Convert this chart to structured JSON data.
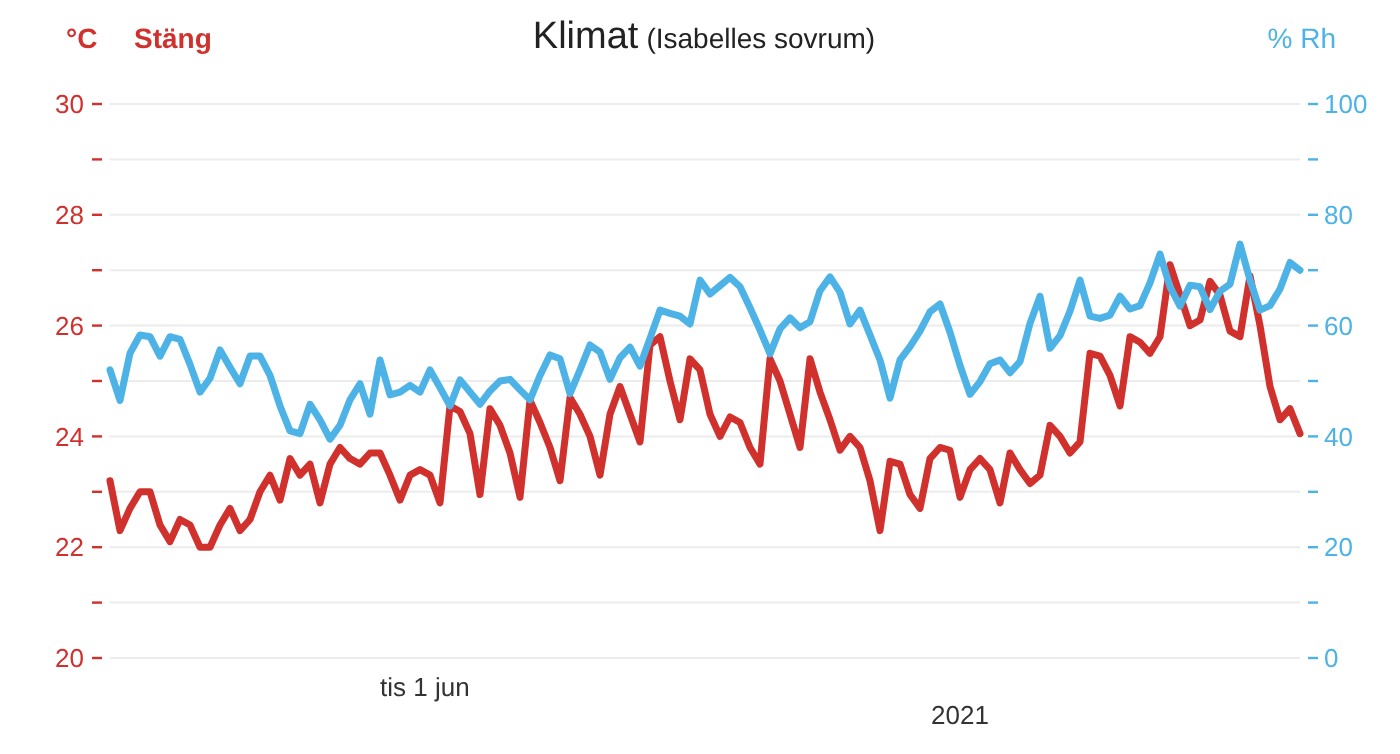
{
  "chart_data": {
    "type": "line",
    "title": "Klimat",
    "subtitle": "(Isabelles sovrum)",
    "ylabel": "°C",
    "y2label": "% Rh",
    "annotations": [
      "Stäng",
      "tis 1 jun",
      "2021"
    ],
    "categories": [
      null,
      null,
      null,
      null,
      null,
      null,
      null,
      null,
      null,
      null,
      null,
      null,
      null,
      null,
      null,
      null,
      null,
      null,
      null,
      null,
      null,
      null,
      null,
      null,
      null,
      null,
      null,
      null,
      null,
      null,
      null,
      null,
      null,
      null,
      null,
      null,
      null,
      null,
      null,
      null,
      null,
      null,
      null,
      null,
      null,
      null,
      null,
      null,
      null,
      null,
      null,
      null,
      null,
      null,
      null,
      null,
      null,
      null,
      null,
      null,
      null,
      null,
      null,
      null,
      null,
      null,
      null,
      null,
      null,
      null,
      null,
      null,
      null,
      null,
      null,
      null,
      null,
      null,
      null,
      null,
      null,
      null,
      null,
      null,
      null,
      null,
      null,
      null,
      null,
      null,
      null,
      null,
      null,
      null,
      null,
      null,
      null,
      null,
      null,
      null,
      null,
      null,
      null,
      null,
      null,
      null,
      null,
      null,
      null,
      null,
      null,
      null,
      null,
      null,
      null,
      null,
      null,
      null,
      null,
      null
    ],
    "ylim": [
      20,
      30
    ],
    "yticks": [
      20,
      {
        "value": 21,
        "label": null
      },
      22,
      {
        "value": 23,
        "label": null
      },
      24,
      {
        "value": 25,
        "label": null
      },
      26,
      {
        "value": 27,
        "label": null
      },
      28,
      {
        "value": 29,
        "label": null
      },
      30
    ],
    "y2lim": [
      0,
      100
    ],
    "y2ticks": [
      0,
      {
        "value": 10,
        "label": null
      },
      20,
      {
        "value": 30,
        "label": null
      },
      40,
      {
        "value": 50,
        "label": null
      },
      60,
      {
        "value": 70,
        "label": null
      },
      80,
      {
        "value": 90,
        "label": null
      },
      100
    ],
    "grid": "y",
    "marker": "none",
    "line_style": "solid",
    "series": [
      {
        "color": "#d0312d",
        "values": [
          23.2,
          22.3,
          22.7,
          23.0,
          23.0,
          22.4,
          22.1,
          22.5,
          22.4,
          22.0,
          22.0,
          22.4,
          22.7,
          22.3,
          22.5,
          23.0,
          23.3,
          22.85,
          23.6,
          23.3,
          23.5,
          22.8,
          23.5,
          23.8,
          23.6,
          23.5,
          23.7,
          23.7,
          23.3,
          22.85,
          23.3,
          23.4,
          23.3,
          22.8,
          24.55,
          24.45,
          24.05,
          22.95,
          24.5,
          24.2,
          23.7,
          22.9,
          24.65,
          24.25,
          23.8,
          23.2,
          24.7,
          24.4,
          24.0,
          23.3,
          24.4,
          24.9,
          24.4,
          23.9,
          25.65,
          25.8,
          25.0,
          24.3,
          25.4,
          25.2,
          24.4,
          24.0,
          24.35,
          24.25,
          23.8,
          23.5,
          25.4,
          25.0,
          24.4,
          23.8,
          25.4,
          24.8,
          24.3,
          23.75,
          24.0,
          23.8,
          23.2,
          22.3,
          23.55,
          23.5,
          22.95,
          22.7,
          23.6,
          23.8,
          23.75,
          22.9,
          23.4,
          23.6,
          23.4,
          22.8,
          23.7,
          23.4,
          23.15,
          23.3,
          24.2,
          24.0,
          23.7,
          23.9,
          25.5,
          25.45,
          25.1,
          24.55,
          25.8,
          25.7,
          25.5,
          25.8,
          27.1,
          26.55,
          26.0,
          26.1,
          26.8,
          26.55,
          25.9,
          25.8,
          26.9,
          26.0,
          24.9,
          24.3,
          24.5,
          24.05
        ]
      },
      {
        "color": "#4db3e6",
        "axis": "y2",
        "values": [
          52,
          46.5,
          55,
          58.3,
          58,
          54.5,
          58,
          57.5,
          53,
          48,
          50.5,
          55.6,
          52.5,
          49.5,
          54.5,
          54.5,
          51,
          45.5,
          41,
          40.5,
          45.8,
          43,
          39.5,
          42,
          46.6,
          49.5,
          44,
          53.8,
          47.5,
          48,
          49.2,
          48,
          52,
          48.8,
          45.5,
          50.2,
          48,
          45.8,
          48.2,
          50,
          50.3,
          48.4,
          46.6,
          51,
          54.7,
          54,
          47.7,
          52,
          56.5,
          55.2,
          50.3,
          54.2,
          56.1,
          52.7,
          57.7,
          62.8,
          62.2,
          61.7,
          60.3,
          68.2,
          65.7,
          67.2,
          68.7,
          67,
          63.2,
          59.2,
          54.9,
          59.4,
          61.4,
          59.6,
          60.7,
          66.3,
          68.8,
          66,
          60.3,
          62.8,
          58.3,
          53.8,
          46.9,
          53.8,
          56.2,
          59,
          62.5,
          63.9,
          58.8,
          52.8,
          47.6,
          49.9,
          53.1,
          53.8,
          51.5,
          53.5,
          60.4,
          65.3,
          55.9,
          58.2,
          62.6,
          68.2,
          61.7,
          61.3,
          61.9,
          65.3,
          63,
          63.6,
          67.7,
          72.9,
          67,
          63.5,
          67.3,
          67,
          62.9,
          66.2,
          67.5,
          74.7,
          68.2,
          62.8,
          63.6,
          66.6,
          71.4,
          70
        ]
      }
    ]
  }
}
